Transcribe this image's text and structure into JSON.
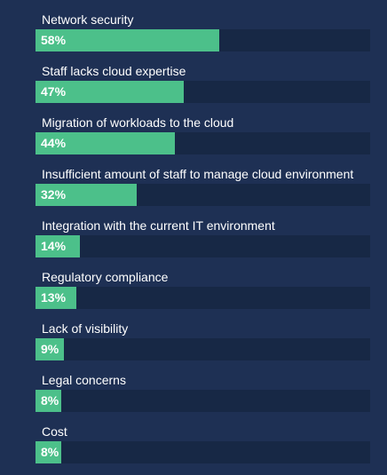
{
  "colors": {
    "background": "#1e3054",
    "track": "#172845",
    "bar": "#4cc08a",
    "text": "#ffffff"
  },
  "chart_data": {
    "type": "bar",
    "orientation": "horizontal",
    "categories": [
      "Network security",
      "Staff lacks cloud expertise",
      "Migration of workloads to the cloud",
      "Insufficient amount of staff to manage cloud environment",
      "Integration with the current IT environment",
      "Regulatory compliance",
      "Lack of visibility",
      "Legal concerns",
      "Cost"
    ],
    "values": [
      58,
      47,
      44,
      32,
      14,
      13,
      9,
      8,
      8
    ],
    "value_labels": [
      "58%",
      "47%",
      "44%",
      "32%",
      "14%",
      "13%",
      "9%",
      "8%",
      "8%"
    ],
    "xlim": [
      0,
      100
    ],
    "grid": false,
    "legend": "none"
  }
}
